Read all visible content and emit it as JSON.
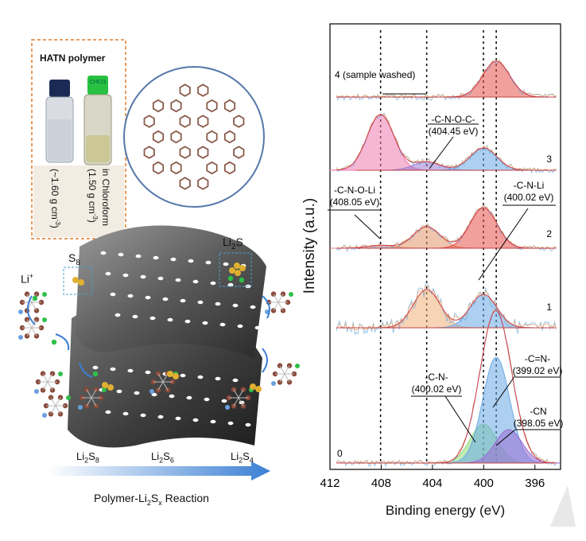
{
  "left_panel": {
    "inset_title": "HATN polymer",
    "vial_caps": [
      "CHCl3"
    ],
    "vial_labels": {
      "left_line1": "(~1.60 g cm",
      "left_sup": "-3",
      "left_line2": ")",
      "right_line1": "in Chloroform",
      "right_line2": "(1.50 g cm",
      "right_sup": "-3",
      "right_line3": ")"
    },
    "species": {
      "s8": "S",
      "s8_sub": "8",
      "li_plus": "Li",
      "li_plus_sup": "+",
      "li2s": "Li",
      "li2s_sub": "2",
      "li2s_s": "S",
      "li2s8": [
        "Li",
        "2",
        "S",
        "8"
      ],
      "li2s6": [
        "Li",
        "2",
        "S",
        "6"
      ],
      "li2s4": [
        "Li",
        "2",
        "S",
        "4"
      ]
    },
    "reaction_label_a": "Polymer-Li",
    "reaction_label_sub": "2",
    "reaction_label_b": "S",
    "reaction_label_subx": "x",
    "reaction_label_c": " Reaction",
    "colors": {
      "arrow": "#3b7fd4",
      "inset_border": "#e07b2a",
      "circle_border": "#5577aa"
    }
  },
  "chart_data": {
    "type": "line",
    "xlabel": "Binding energy (eV)",
    "ylabel": "Intensity (a.u.)",
    "xlim": [
      412,
      394
    ],
    "x_ticks": [
      412,
      408,
      404,
      400,
      396
    ],
    "reference_lines": [
      408.05,
      404.45,
      400.02,
      399.02
    ],
    "series": [
      {
        "name": "4 (sample washed)",
        "peaks": [
          {
            "center": 399.02,
            "height": 0.75,
            "color": "#e8524a"
          }
        ]
      },
      {
        "name": "3",
        "peaks": [
          {
            "center": 408.05,
            "height": 1.0,
            "color": "#ee7bb0"
          },
          {
            "center": 404.45,
            "height": 0.15,
            "color": "#9b7bd4"
          },
          {
            "center": 400.02,
            "height": 0.4,
            "color": "#6aa9e6"
          }
        ]
      },
      {
        "name": "2",
        "peaks": [
          {
            "center": 408.05,
            "height": 0.06,
            "color": "#e08080"
          },
          {
            "center": 404.45,
            "height": 0.45,
            "color": "#e2956a"
          },
          {
            "center": 400.02,
            "height": 0.85,
            "color": "#e8524a"
          }
        ]
      },
      {
        "name": "1",
        "peaks": [
          {
            "center": 404.45,
            "height": 0.8,
            "color": "#f0b07a"
          },
          {
            "center": 400.02,
            "height": 0.7,
            "color": "#6aa9e6"
          }
        ]
      },
      {
        "name": "0",
        "peaks": [
          {
            "center": 400.02,
            "height": 0.35,
            "color": "#8fdc7a"
          },
          {
            "center": 399.02,
            "height": 0.95,
            "color": "#6aa9e6"
          },
          {
            "center": 398.05,
            "height": 0.3,
            "color": "#9b6bd4"
          }
        ]
      }
    ],
    "annotations": [
      {
        "text": [
          "-C-N-O-C-",
          "(404.45 eV)"
        ]
      },
      {
        "text": [
          "-C-N-O-Li",
          "(408.05 eV)"
        ]
      },
      {
        "text": [
          "-C-N-Li",
          "(400.02 eV)"
        ]
      },
      {
        "text": [
          "-C=N-",
          "(399.02 eV)"
        ]
      },
      {
        "text": [
          "-C-N-",
          "(400.02 eV)"
        ]
      },
      {
        "text": [
          "-CN",
          "(398.05 eV)"
        ]
      }
    ]
  }
}
